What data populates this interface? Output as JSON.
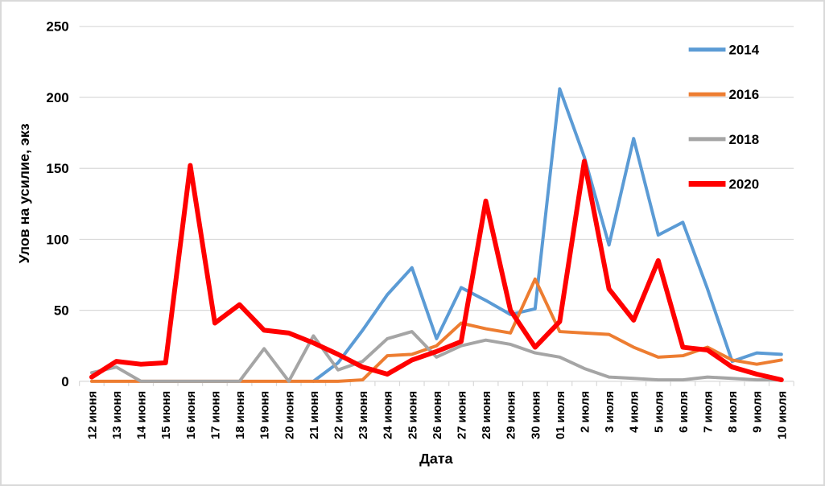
{
  "chart_data": {
    "type": "line",
    "title": "",
    "xlabel": "Дата",
    "ylabel": "Улов на усилие, экз",
    "ylim": [
      0,
      250
    ],
    "ytick_step": 50,
    "grid": true,
    "legend_position": "right",
    "gridline_color": "#D9D9D9",
    "categories": [
      "12 июня",
      "13 июня",
      "14 июня",
      "15 июня",
      "16 июня",
      "17 июня",
      "18 июня",
      "19 июня",
      "20 июня",
      "21 июня",
      "22 июня",
      "23 июня",
      "24 июня",
      "25 июня",
      "26 июня",
      "27 июня",
      "28 июня",
      "29 июня",
      "30 июня",
      "01 июля",
      "2 июля",
      "3 июля",
      "4 июля",
      "5 июля",
      "6 июля",
      "7 июля",
      "8 июля",
      "9 июля",
      "10 июля"
    ],
    "series": [
      {
        "name": "2014",
        "color": "#5B9BD5",
        "width": 4,
        "values": [
          null,
          null,
          null,
          null,
          null,
          null,
          null,
          null,
          null,
          0,
          13,
          36,
          61,
          80,
          30,
          66,
          57,
          47,
          51,
          206,
          158,
          96,
          171,
          103,
          112,
          65,
          14,
          20,
          19
        ]
      },
      {
        "name": "2016",
        "color": "#ED7D31",
        "width": 4,
        "values": [
          0,
          0,
          0,
          0,
          0,
          0,
          0,
          0,
          0,
          0,
          0,
          1,
          18,
          19,
          25,
          41,
          37,
          34,
          72,
          35,
          34,
          33,
          24,
          17,
          18,
          24,
          15,
          12,
          15
        ]
      },
      {
        "name": "2018",
        "color": "#A5A5A5",
        "width": 4,
        "values": [
          6,
          10,
          0,
          0,
          0,
          0,
          0,
          23,
          0,
          32,
          8,
          14,
          30,
          35,
          17,
          25,
          29,
          26,
          20,
          17,
          9,
          3,
          2,
          1,
          1,
          3,
          2,
          1,
          1
        ]
      },
      {
        "name": "2020",
        "color": "#FF0000",
        "width": 6,
        "values": [
          3,
          14,
          12,
          13,
          152,
          41,
          54,
          36,
          34,
          27,
          19,
          10,
          5,
          15,
          21,
          28,
          127,
          50,
          24,
          42,
          155,
          65,
          43,
          85,
          24,
          22,
          10,
          5,
          1
        ]
      }
    ]
  },
  "frame": {
    "background": "#FFFFFF",
    "border_color": "#D9D9D9"
  }
}
